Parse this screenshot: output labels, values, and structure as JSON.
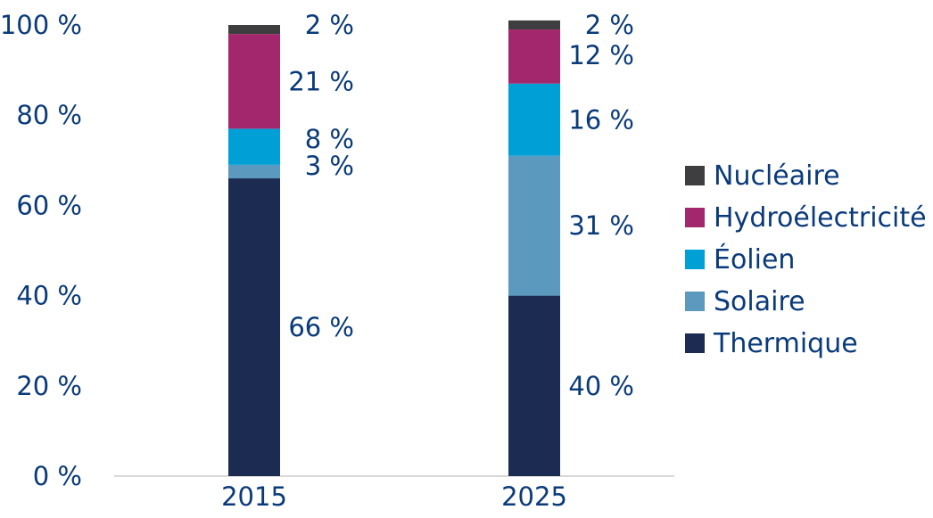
{
  "chart_data": {
    "type": "bar",
    "stacked": true,
    "title": "",
    "xlabel": "",
    "ylabel": "",
    "categories": [
      "2015",
      "2025"
    ],
    "ylim": [
      0,
      100
    ],
    "yticks": [
      "0 %",
      "20 %",
      "40 %",
      "60 %",
      "80 %",
      "100 %"
    ],
    "grid": false,
    "legend_position": "right",
    "series": [
      {
        "name": "Thermique",
        "color": "#1c2b52",
        "values": [
          66,
          40
        ],
        "labels": [
          "66 %",
          "40 %"
        ]
      },
      {
        "name": "Solaire",
        "color": "#5b99be",
        "values": [
          3,
          31
        ],
        "labels": [
          "3 %",
          "31 %"
        ]
      },
      {
        "name": "Éolien",
        "color": "#00a0d6",
        "values": [
          8,
          16
        ],
        "labels": [
          "8 %",
          "16 %"
        ]
      },
      {
        "name": "Hydroélectricité",
        "color": "#a3276c",
        "values": [
          21,
          12
        ],
        "labels": [
          "21 %",
          "12 %"
        ]
      },
      {
        "name": "Nucléaire",
        "color": "#3e3e40",
        "values": [
          2,
          2
        ],
        "labels": [
          "2 %",
          "2 %"
        ]
      }
    ],
    "legend_order": [
      "Nucléaire",
      "Hydroélectricité",
      "Éolien",
      "Solaire",
      "Thermique"
    ]
  }
}
